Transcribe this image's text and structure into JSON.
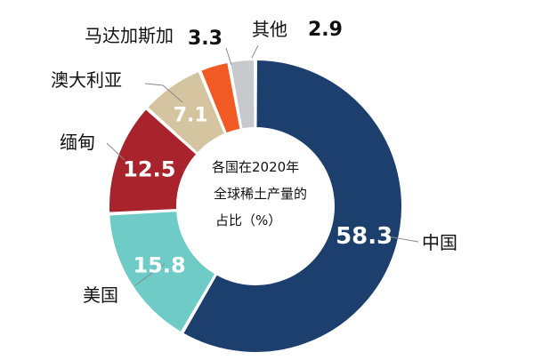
{
  "chart_data": {
    "type": "donut",
    "center_label": [
      "各国在2020年",
      "全球稀土产量的",
      "占比（%）"
    ],
    "categories": [
      "中国",
      "美国",
      "缅甸",
      "澳大利亚",
      "马达加斯加",
      "其他"
    ],
    "values": [
      58.3,
      15.8,
      12.5,
      7.1,
      3.3,
      2.9
    ],
    "value_labels": [
      "58.3",
      "15.8",
      "12.5",
      "7.1",
      "3.3",
      "2.9"
    ],
    "colors": [
      "#1c3f6e",
      "#6fcbc5",
      "#a8232b",
      "#d4c5a0",
      "#f15a24",
      "#c7c9cc"
    ],
    "start_at": "top, clockwise",
    "legend": "none"
  }
}
